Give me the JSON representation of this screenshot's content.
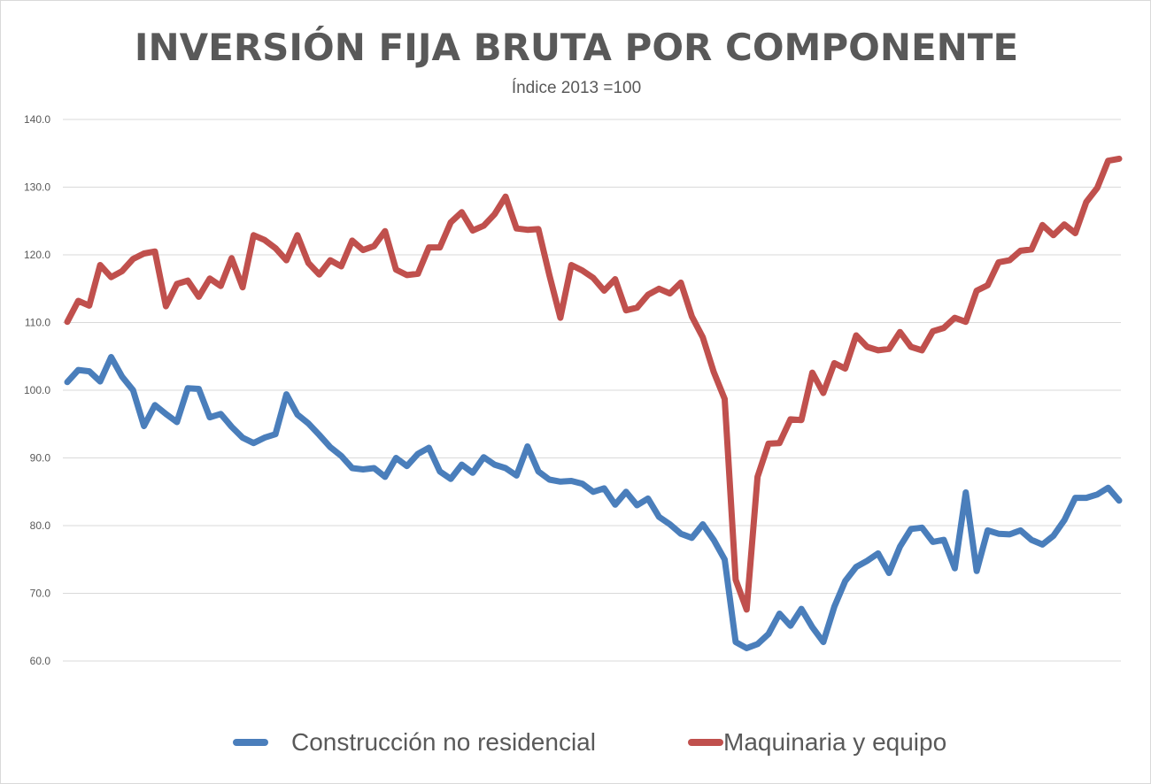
{
  "chart_data": {
    "type": "line",
    "title": "INVERSIÓN FIJA BRUTA POR COMPONENTE",
    "subtitle": "Índice 2013 =100",
    "xlabel": "",
    "ylabel": "",
    "ylim": [
      60,
      140
    ],
    "yticks": [
      "60.0",
      "70.0",
      "80.0",
      "90.0",
      "100.0",
      "110.0",
      "120.0",
      "130.0",
      "140.0"
    ],
    "grid": true,
    "legend_position": "bottom",
    "series": [
      {
        "name": "Construcción no residencial",
        "color": "#4a7ebb",
        "values": [
          101.2,
          103.0,
          102.8,
          101.3,
          104.9,
          102.0,
          100.0,
          94.7,
          97.8,
          96.5,
          95.3,
          100.3,
          100.2,
          96.0,
          96.5,
          94.6,
          93.0,
          92.2,
          93.0,
          93.5,
          99.4,
          96.4,
          95.1,
          93.4,
          91.6,
          90.3,
          88.5,
          88.3,
          88.5,
          87.2,
          90.0,
          88.8,
          90.6,
          91.5,
          88.0,
          86.9,
          89.0,
          87.8,
          90.1,
          89.0,
          88.5,
          87.4,
          91.7,
          88.0,
          86.8,
          86.5,
          86.6,
          86.2,
          85.0,
          85.5,
          83.1,
          85.0,
          83.0,
          84.0,
          81.3,
          80.2,
          78.8,
          78.2,
          80.2,
          77.9,
          75.0,
          62.8,
          61.9,
          62.5,
          64.0,
          67.0,
          65.2,
          67.7,
          65.0,
          62.8,
          68.0,
          71.8,
          73.9,
          74.8,
          75.9,
          73.0,
          76.9,
          79.5,
          79.7,
          77.6,
          77.9,
          73.7,
          84.9,
          73.3,
          79.3,
          78.8,
          78.7,
          79.3,
          77.9,
          77.2,
          78.5,
          80.8,
          84.1,
          84.1,
          84.6,
          85.6,
          83.7
        ]
      },
      {
        "name": "Maquinaria y equipo",
        "color": "#c0504d",
        "values": [
          110.1,
          113.2,
          112.5,
          118.5,
          116.7,
          117.6,
          119.4,
          120.2,
          120.5,
          112.4,
          115.7,
          116.2,
          113.8,
          116.5,
          115.4,
          119.5,
          115.2,
          122.9,
          122.2,
          121.0,
          119.2,
          122.9,
          118.8,
          117.1,
          119.2,
          118.3,
          122.1,
          120.7,
          121.3,
          123.5,
          117.8,
          117.0,
          117.2,
          121.1,
          121.1,
          124.8,
          126.3,
          123.6,
          124.3,
          126.0,
          128.6,
          123.9,
          123.7,
          123.8,
          117.0,
          110.7,
          118.5,
          117.7,
          116.6,
          114.7,
          116.4,
          111.8,
          112.2,
          114.1,
          115.0,
          114.3,
          115.9,
          110.9,
          107.8,
          102.7,
          98.7,
          72.0,
          67.6,
          87.2,
          92.1,
          92.2,
          95.7,
          95.6,
          102.6,
          99.6,
          104.0,
          103.2,
          108.1,
          106.4,
          105.9,
          106.1,
          108.6,
          106.4,
          105.9,
          108.7,
          109.2,
          110.7,
          110.1,
          114.7,
          115.5,
          118.9,
          119.2,
          120.6,
          120.8,
          124.4,
          122.9,
          124.5,
          123.2,
          127.8,
          129.9,
          133.9,
          134.2
        ]
      }
    ]
  }
}
